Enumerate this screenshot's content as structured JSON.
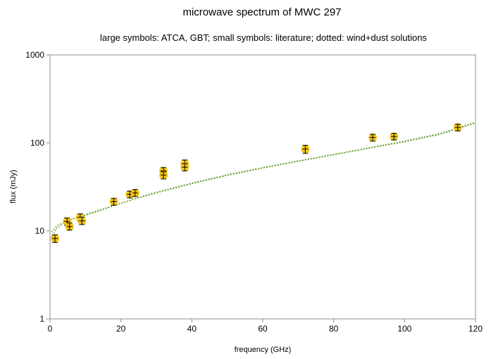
{
  "chart_data": {
    "type": "scatter",
    "title": "microwave spectrum of MWC 297",
    "subtitle": "large symbols: ATCA, GBT; small symbols: literature; dotted: wind+dust solutions",
    "xlabel": "frequency (GHz)",
    "ylabel": "flux (mJy)",
    "xlim": [
      0,
      120
    ],
    "ylim": [
      1,
      1000
    ],
    "yscale": "log",
    "grid": false,
    "x_ticks": [
      0,
      20,
      40,
      60,
      80,
      100,
      120
    ],
    "x_tick_labels": [
      "0",
      "20",
      "40",
      "60",
      "80",
      "100",
      "120"
    ],
    "y_ticks": [
      1,
      10,
      100,
      1000
    ],
    "y_tick_labels": [
      "1",
      "10",
      "100",
      "1000"
    ],
    "marker_color": "#f5c518",
    "errorbar_color": "#000000",
    "curve_color": "#5a9a1a",
    "series": [
      {
        "role": "measurements",
        "points": [
          {
            "x": 1.4,
            "y": 8.2,
            "err": [
              7.4,
              9.0
            ]
          },
          {
            "x": 4.8,
            "y": 12.8,
            "err": [
              11.6,
              14.0
            ]
          },
          {
            "x": 5.5,
            "y": 11.2,
            "err": [
              10.2,
              12.3
            ]
          },
          {
            "x": 8.5,
            "y": 14.2,
            "err": [
              12.9,
              15.6
            ]
          },
          {
            "x": 9.0,
            "y": 13.0,
            "err": [
              11.8,
              14.3
            ]
          },
          {
            "x": 18.0,
            "y": 21.5,
            "err": [
              19.6,
              23.4
            ]
          },
          {
            "x": 22.5,
            "y": 26.0,
            "err": [
              23.7,
              28.3
            ]
          },
          {
            "x": 24.0,
            "y": 27.0,
            "err": [
              24.6,
              29.4
            ]
          },
          {
            "x": 32.0,
            "y": 48.0,
            "err": [
              43.5,
              52.5
            ]
          },
          {
            "x": 32.0,
            "y": 43.0,
            "err": [
              39.0,
              47.0
            ]
          },
          {
            "x": 38.0,
            "y": 58.0,
            "err": [
              52.0,
              64.0
            ]
          },
          {
            "x": 38.0,
            "y": 53.0,
            "err": [
              48.0,
              58.0
            ]
          },
          {
            "x": 72.0,
            "y": 85.0,
            "err": [
              76.0,
              94.0
            ]
          },
          {
            "x": 91.0,
            "y": 115.0,
            "err": [
              105.0,
              125.0
            ]
          },
          {
            "x": 97.0,
            "y": 118.0,
            "err": [
              108.0,
              128.0
            ]
          },
          {
            "x": 115.0,
            "y": 150.0,
            "err": [
              137.0,
              163.0
            ]
          }
        ]
      },
      {
        "role": "model-curve",
        "style": "dotted",
        "x": [
          0.5,
          2,
          4,
          6,
          8,
          10,
          15,
          20,
          25,
          30,
          40,
          50,
          60,
          70,
          80,
          90,
          100,
          110,
          120
        ],
        "y": [
          9.8,
          11.5,
          12.6,
          13.5,
          14.3,
          15.0,
          17.5,
          20.5,
          24.0,
          27.5,
          35.0,
          43.5,
          52.5,
          62.5,
          74.0,
          88.0,
          105.0,
          128.0,
          172.0
        ]
      },
      {
        "role": "model-curve",
        "style": "dotted",
        "x": [
          0.5,
          2,
          4,
          6,
          8,
          10,
          15,
          20,
          25,
          30,
          40,
          50,
          60,
          70,
          80,
          90,
          100,
          110,
          120
        ],
        "y": [
          8.8,
          10.8,
          12.3,
          13.4,
          14.4,
          15.3,
          17.8,
          20.6,
          23.7,
          27.0,
          34.3,
          42.7,
          51.7,
          61.7,
          73.2,
          86.9,
          103.0,
          125.0,
          168.0
        ]
      }
    ]
  }
}
